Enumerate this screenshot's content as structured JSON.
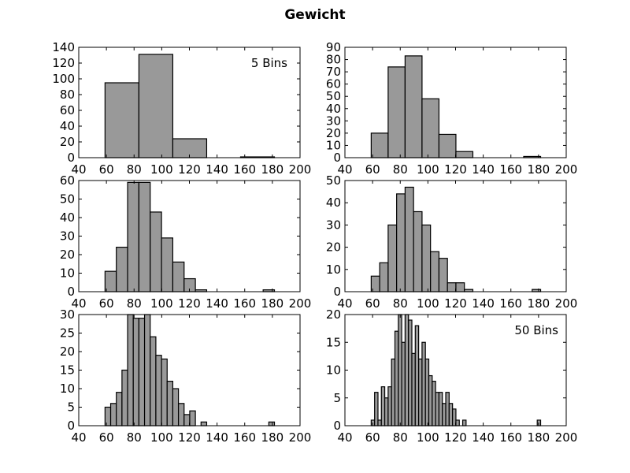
{
  "figure": {
    "title": "Gewicht"
  },
  "colors": {
    "bar_fill": "#999999",
    "bar_edge": "#000000",
    "axes_edge": "#000000",
    "background": "#ffffff"
  },
  "chart_data": [
    {
      "type": "bar",
      "annotation": "5 Bins",
      "x_range": [
        40,
        200
      ],
      "x_ticks": [
        "40",
        "60",
        "80",
        "100",
        "120",
        "140",
        "160",
        "180",
        "200"
      ],
      "ylim": [
        0,
        140
      ],
      "y_ticks": [
        "0",
        "20",
        "40",
        "60",
        "80",
        "100",
        "120",
        "140"
      ],
      "bin_width": 24.5,
      "bin_starts": [
        59,
        83.5,
        108,
        132.5,
        157
      ],
      "values": [
        95,
        131,
        24,
        0,
        1
      ]
    },
    {
      "type": "bar",
      "annotation": "",
      "x_range": [
        40,
        200
      ],
      "x_ticks": [
        "40",
        "60",
        "80",
        "100",
        "120",
        "140",
        "160",
        "180",
        "200"
      ],
      "ylim": [
        0,
        90
      ],
      "y_ticks": [
        "0",
        "10",
        "20",
        "30",
        "40",
        "50",
        "60",
        "70",
        "80",
        "90"
      ],
      "bin_width": 12.25,
      "bin_starts": [
        59,
        71.25,
        83.5,
        95.75,
        108,
        120.25,
        132.5,
        144.75,
        157,
        169.25
      ],
      "values": [
        20,
        74,
        83,
        48,
        19,
        5,
        0,
        0,
        0,
        1
      ]
    },
    {
      "type": "bar",
      "annotation": "",
      "x_range": [
        40,
        200
      ],
      "x_ticks": [
        "40",
        "60",
        "80",
        "100",
        "120",
        "140",
        "160",
        "180",
        "200"
      ],
      "ylim": [
        0,
        60
      ],
      "y_ticks": [
        "0",
        "10",
        "20",
        "30",
        "40",
        "50",
        "60"
      ],
      "bin_width": 8.1667,
      "bin_starts": [
        59,
        67.17,
        75.33,
        83.5,
        91.67,
        99.83,
        108,
        116.17,
        124.33,
        132.5,
        140.67,
        148.83,
        157,
        165.17,
        173.33
      ],
      "values": [
        11,
        24,
        59,
        59,
        43,
        29,
        16,
        7,
        1,
        0,
        0,
        0,
        0,
        0,
        1
      ]
    },
    {
      "type": "bar",
      "annotation": "",
      "x_range": [
        40,
        200
      ],
      "x_ticks": [
        "40",
        "60",
        "80",
        "100",
        "120",
        "140",
        "160",
        "180",
        "200"
      ],
      "ylim": [
        0,
        50
      ],
      "y_ticks": [
        "0",
        "10",
        "20",
        "30",
        "40",
        "50"
      ],
      "bin_width": 6.125,
      "bin_starts": [
        59,
        65.13,
        71.25,
        77.38,
        83.5,
        89.63,
        95.75,
        101.88,
        108,
        114.13,
        120.25,
        126.38,
        132.5,
        138.63,
        144.75,
        150.88,
        157,
        163.13,
        169.25,
        175.38
      ],
      "values": [
        7,
        13,
        30,
        44,
        47,
        36,
        30,
        18,
        15,
        4,
        4,
        1,
        0,
        0,
        0,
        0,
        0,
        0,
        0,
        1
      ]
    },
    {
      "type": "bar",
      "annotation": "",
      "x_range": [
        40,
        200
      ],
      "x_ticks": [
        "40",
        "60",
        "80",
        "100",
        "120",
        "140",
        "160",
        "180",
        "200"
      ],
      "ylim": [
        0,
        30
      ],
      "y_ticks": [
        "0",
        "5",
        "10",
        "15",
        "20",
        "25",
        "30"
      ],
      "bin_width": 4.083,
      "bin_starts": [
        59,
        63.08,
        67.17,
        71.25,
        75.33,
        79.42,
        83.5,
        87.58,
        91.67,
        95.75,
        99.83,
        103.92,
        108,
        112.08,
        116.17,
        120.25,
        124.33,
        128.42,
        132.5,
        136.58,
        140.67,
        144.75,
        148.83,
        152.92,
        157,
        161.08,
        165.17,
        169.25,
        173.33,
        177.42
      ],
      "values": [
        5,
        6,
        9,
        15,
        30,
        29,
        29,
        30,
        24,
        19,
        18,
        12,
        10,
        6,
        3,
        4,
        0,
        1,
        0,
        0,
        0,
        0,
        0,
        0,
        0,
        0,
        0,
        0,
        0,
        1
      ]
    },
    {
      "type": "bar",
      "annotation": "50 Bins",
      "x_range": [
        40,
        200
      ],
      "x_ticks": [
        "40",
        "60",
        "80",
        "100",
        "120",
        "140",
        "160",
        "180",
        "200"
      ],
      "ylim": [
        0,
        20
      ],
      "y_ticks": [
        "0",
        "5",
        "10",
        "15",
        "20"
      ],
      "bin_width": 2.45,
      "bin_starts": [
        59,
        61.45,
        63.9,
        66.35,
        68.8,
        71.25,
        73.7,
        76.15,
        78.6,
        81.05,
        83.5,
        85.95,
        88.4,
        90.85,
        93.3,
        95.75,
        98.2,
        100.65,
        103.1,
        105.55,
        108,
        110.45,
        112.9,
        115.35,
        117.8,
        120.25,
        122.7,
        125.15,
        127.6,
        130.05,
        132.5,
        134.95,
        137.4,
        139.85,
        142.3,
        144.75,
        147.2,
        149.65,
        152.1,
        154.55,
        157,
        159.45,
        161.9,
        164.35,
        166.8,
        169.25,
        171.7,
        174.15,
        176.6,
        179.05
      ],
      "values": [
        1,
        6,
        1,
        7,
        5,
        7,
        12,
        17,
        20,
        15,
        20,
        19,
        13,
        18,
        12,
        15,
        12,
        9,
        8,
        6,
        6,
        4,
        6,
        4,
        3,
        1,
        0,
        1,
        0,
        0,
        0,
        0,
        0,
        0,
        0,
        0,
        0,
        0,
        0,
        0,
        0,
        0,
        0,
        0,
        0,
        0,
        0,
        0,
        0,
        1
      ]
    }
  ]
}
